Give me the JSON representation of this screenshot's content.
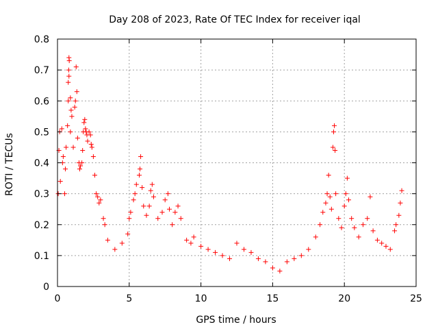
{
  "chart_data": {
    "type": "scatter",
    "title": "Day 208 of 2023, Rate Of TEC Index for receiver iqal",
    "xlabel": "GPS time / hours",
    "ylabel": "ROTI / TECUs",
    "xlim": [
      0,
      25
    ],
    "ylim": [
      0,
      0.8
    ],
    "xticks": [
      "0",
      "5",
      "10",
      "15",
      "20",
      "25"
    ],
    "yticks": [
      "0",
      "0.1",
      "0.2",
      "0.3",
      "0.4",
      "0.5",
      "0.6",
      "0.7",
      "0.8"
    ],
    "grid": true,
    "marker": "plus",
    "colors": {
      "points": "#ff0000",
      "grid": "#a0a0a0",
      "frame": "#000000"
    },
    "series": [
      {
        "points": [
          [
            0.05,
            0.3
          ],
          [
            0.1,
            0.44
          ],
          [
            0.15,
            0.5
          ],
          [
            0.2,
            0.34
          ],
          [
            0.3,
            0.51
          ],
          [
            0.35,
            0.4
          ],
          [
            0.4,
            0.42
          ],
          [
            0.5,
            0.3
          ],
          [
            0.55,
            0.38
          ],
          [
            0.6,
            0.45
          ],
          [
            0.7,
            0.52
          ],
          [
            0.75,
            0.6
          ],
          [
            0.8,
            0.74
          ],
          [
            0.82,
            0.73
          ],
          [
            0.78,
            0.7
          ],
          [
            0.8,
            0.68
          ],
          [
            0.75,
            0.66
          ],
          [
            0.9,
            0.61
          ],
          [
            0.95,
            0.57
          ],
          [
            1.0,
            0.55
          ],
          [
            0.9,
            0.5
          ],
          [
            1.1,
            0.45
          ],
          [
            1.2,
            0.58
          ],
          [
            1.25,
            0.6
          ],
          [
            1.3,
            0.71
          ],
          [
            1.35,
            0.63
          ],
          [
            1.4,
            0.48
          ],
          [
            1.5,
            0.4
          ],
          [
            1.55,
            0.38
          ],
          [
            1.6,
            0.39
          ],
          [
            1.7,
            0.4
          ],
          [
            1.75,
            0.44
          ],
          [
            1.8,
            0.5
          ],
          [
            1.85,
            0.53
          ],
          [
            1.9,
            0.54
          ],
          [
            1.95,
            0.51
          ],
          [
            2.0,
            0.5
          ],
          [
            2.05,
            0.49
          ],
          [
            2.1,
            0.47
          ],
          [
            2.2,
            0.5
          ],
          [
            2.3,
            0.49
          ],
          [
            2.35,
            0.46
          ],
          [
            2.4,
            0.45
          ],
          [
            2.5,
            0.42
          ],
          [
            2.6,
            0.36
          ],
          [
            2.7,
            0.3
          ],
          [
            2.8,
            0.29
          ],
          [
            2.9,
            0.27
          ],
          [
            3.0,
            0.28
          ],
          [
            3.2,
            0.22
          ],
          [
            3.3,
            0.2
          ],
          [
            3.5,
            0.15
          ],
          [
            4.0,
            0.12
          ],
          [
            4.5,
            0.14
          ],
          [
            4.9,
            0.17
          ],
          [
            5.0,
            0.22
          ],
          [
            5.1,
            0.24
          ],
          [
            5.3,
            0.28
          ],
          [
            5.4,
            0.3
          ],
          [
            5.5,
            0.33
          ],
          [
            5.7,
            0.36
          ],
          [
            5.75,
            0.38
          ],
          [
            5.8,
            0.42
          ],
          [
            5.9,
            0.32
          ],
          [
            6.0,
            0.26
          ],
          [
            6.2,
            0.23
          ],
          [
            6.4,
            0.26
          ],
          [
            6.5,
            0.31
          ],
          [
            6.6,
            0.33
          ],
          [
            6.7,
            0.29
          ],
          [
            7.0,
            0.22
          ],
          [
            7.3,
            0.24
          ],
          [
            7.5,
            0.28
          ],
          [
            7.7,
            0.3
          ],
          [
            7.8,
            0.25
          ],
          [
            8.0,
            0.2
          ],
          [
            8.2,
            0.24
          ],
          [
            8.4,
            0.26
          ],
          [
            8.6,
            0.22
          ],
          [
            9.0,
            0.15
          ],
          [
            9.3,
            0.14
          ],
          [
            9.5,
            0.16
          ],
          [
            10.0,
            0.13
          ],
          [
            10.5,
            0.12
          ],
          [
            11.0,
            0.11
          ],
          [
            11.5,
            0.1
          ],
          [
            12.0,
            0.09
          ],
          [
            12.5,
            0.14
          ],
          [
            13.0,
            0.12
          ],
          [
            13.5,
            0.11
          ],
          [
            14.0,
            0.09
          ],
          [
            14.5,
            0.08
          ],
          [
            15.0,
            0.06
          ],
          [
            15.5,
            0.05
          ],
          [
            16.0,
            0.08
          ],
          [
            16.5,
            0.09
          ],
          [
            17.0,
            0.1
          ],
          [
            17.5,
            0.12
          ],
          [
            18.0,
            0.16
          ],
          [
            18.3,
            0.2
          ],
          [
            18.5,
            0.24
          ],
          [
            18.7,
            0.27
          ],
          [
            18.8,
            0.3
          ],
          [
            18.9,
            0.36
          ],
          [
            19.0,
            0.29
          ],
          [
            19.1,
            0.25
          ],
          [
            19.2,
            0.45
          ],
          [
            19.25,
            0.5
          ],
          [
            19.3,
            0.52
          ],
          [
            19.35,
            0.44
          ],
          [
            19.4,
            0.3
          ],
          [
            19.6,
            0.22
          ],
          [
            19.8,
            0.19
          ],
          [
            20.0,
            0.26
          ],
          [
            20.1,
            0.3
          ],
          [
            20.2,
            0.35
          ],
          [
            20.3,
            0.28
          ],
          [
            20.5,
            0.22
          ],
          [
            20.7,
            0.19
          ],
          [
            21.0,
            0.16
          ],
          [
            21.3,
            0.2
          ],
          [
            21.6,
            0.22
          ],
          [
            21.8,
            0.29
          ],
          [
            22.0,
            0.18
          ],
          [
            22.3,
            0.15
          ],
          [
            22.6,
            0.14
          ],
          [
            22.9,
            0.13
          ],
          [
            23.2,
            0.12
          ],
          [
            23.5,
            0.18
          ],
          [
            23.6,
            0.2
          ],
          [
            23.8,
            0.23
          ],
          [
            23.9,
            0.27
          ],
          [
            24.0,
            0.31
          ]
        ]
      }
    ]
  }
}
